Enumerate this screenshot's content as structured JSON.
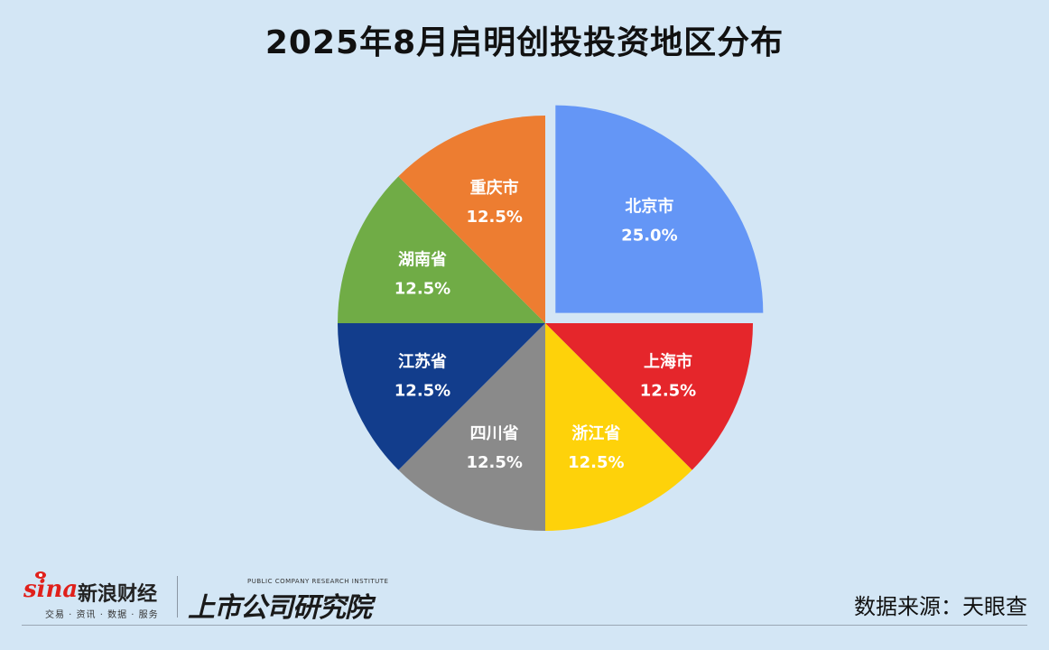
{
  "title": "2025年8月启明创投投资地区分布",
  "chart_data": {
    "type": "pie",
    "title": "2025年8月启明创投投资地区分布",
    "slices": [
      {
        "label": "北京市",
        "value": 25.0,
        "value_text": "25.0%",
        "color": "#6496f6",
        "exploded": true
      },
      {
        "label": "上海市",
        "value": 12.5,
        "value_text": "12.5%",
        "color": "#e5262b"
      },
      {
        "label": "浙江省",
        "value": 12.5,
        "value_text": "12.5%",
        "color": "#fed20a"
      },
      {
        "label": "四川省",
        "value": 12.5,
        "value_text": "12.5%",
        "color": "#8a8a8a"
      },
      {
        "label": "江苏省",
        "value": 12.5,
        "value_text": "12.5%",
        "color": "#123d8c"
      },
      {
        "label": "湖南省",
        "value": 12.5,
        "value_text": "12.5%",
        "color": "#70ac46"
      },
      {
        "label": "重庆市",
        "value": 12.5,
        "value_text": "12.5%",
        "color": "#ed7d31"
      }
    ],
    "start_angle": "12 o'clock",
    "direction": "clockwise",
    "legend": "none"
  },
  "footer": {
    "sina_word": "sina",
    "sina_cn": "新浪财经",
    "sina_sub": "交易 · 资讯 · 数据 · 服务",
    "ssri_en": "PUBLIC COMPANY RESEARCH INSTITUTE",
    "ssri_cn": "上市公司研究院",
    "source": "数据来源：天眼查"
  }
}
